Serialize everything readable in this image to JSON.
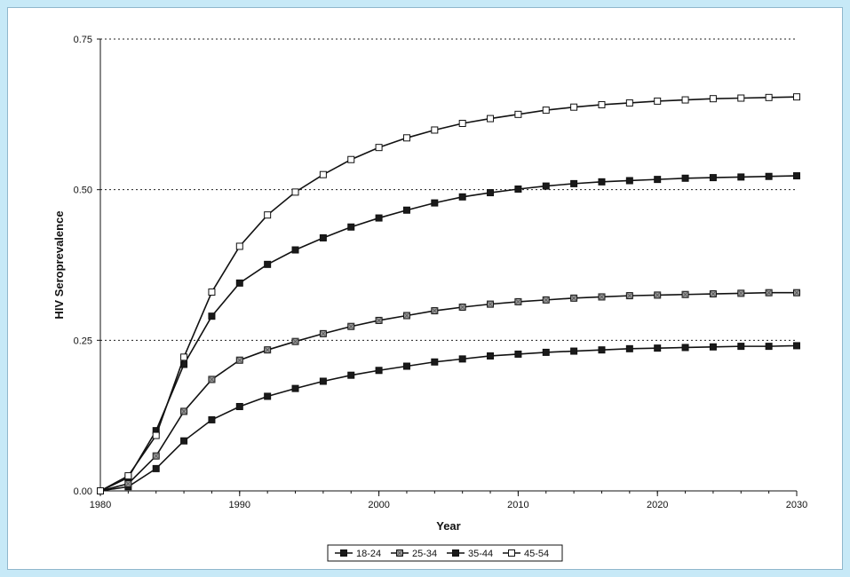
{
  "colors": {
    "page_background": "#c7e9f7",
    "plot_background": "#ffffff",
    "series_stroke": "#111111",
    "solid_marker_fill": "#1a1a1a",
    "stippled_marker_fill": "#9a9a9a",
    "open_marker_fill": "#ffffff"
  },
  "chart_data": {
    "type": "line",
    "title": "",
    "xlabel": "Year",
    "ylabel": "HIV Seroprevalence",
    "xlim": [
      1980,
      2030
    ],
    "ylim": [
      0,
      0.75
    ],
    "x_ticks": [
      1980,
      1990,
      2000,
      2010,
      2020,
      2030
    ],
    "x_tick_labels": [
      "1980",
      "1990",
      "2000",
      "2010",
      "2020",
      "2030"
    ],
    "y_ticks": [
      0,
      0.25,
      0.5,
      0.75
    ],
    "y_tick_labels": [
      "0.00",
      "0.25",
      "0.50",
      "0.75"
    ],
    "grid": "dotted horizontal lines at 0.25, 0.50, 0.75",
    "legend_position": "bottom-center",
    "x": [
      1980,
      1982,
      1984,
      1986,
      1988,
      1990,
      1992,
      1994,
      1996,
      1998,
      2000,
      2002,
      2004,
      2006,
      2008,
      2010,
      2012,
      2014,
      2016,
      2018,
      2020,
      2022,
      2024,
      2026,
      2028,
      2030
    ],
    "series": [
      {
        "name": "18-24",
        "marker": "filled-square",
        "values": [
          0.0,
          0.007,
          0.037,
          0.083,
          0.118,
          0.14,
          0.157,
          0.17,
          0.182,
          0.192,
          0.2,
          0.207,
          0.214,
          0.219,
          0.224,
          0.227,
          0.23,
          0.232,
          0.234,
          0.236,
          0.237,
          0.238,
          0.239,
          0.24,
          0.24,
          0.241
        ]
      },
      {
        "name": "25-34",
        "marker": "stippled-square",
        "values": [
          0.0,
          0.012,
          0.058,
          0.132,
          0.185,
          0.217,
          0.234,
          0.248,
          0.261,
          0.273,
          0.283,
          0.291,
          0.299,
          0.305,
          0.31,
          0.314,
          0.317,
          0.32,
          0.322,
          0.324,
          0.325,
          0.326,
          0.327,
          0.328,
          0.329,
          0.329
        ]
      },
      {
        "name": "35-44",
        "marker": "filled-square",
        "values": [
          0.0,
          0.022,
          0.1,
          0.21,
          0.29,
          0.345,
          0.376,
          0.4,
          0.42,
          0.438,
          0.453,
          0.466,
          0.478,
          0.488,
          0.495,
          0.501,
          0.506,
          0.51,
          0.513,
          0.515,
          0.517,
          0.519,
          0.52,
          0.521,
          0.522,
          0.523
        ]
      },
      {
        "name": "45-54",
        "marker": "open-square",
        "values": [
          0.0,
          0.025,
          0.092,
          0.222,
          0.33,
          0.406,
          0.458,
          0.496,
          0.525,
          0.55,
          0.57,
          0.586,
          0.599,
          0.61,
          0.618,
          0.625,
          0.632,
          0.637,
          0.641,
          0.644,
          0.647,
          0.649,
          0.651,
          0.652,
          0.653,
          0.654
        ]
      }
    ]
  }
}
